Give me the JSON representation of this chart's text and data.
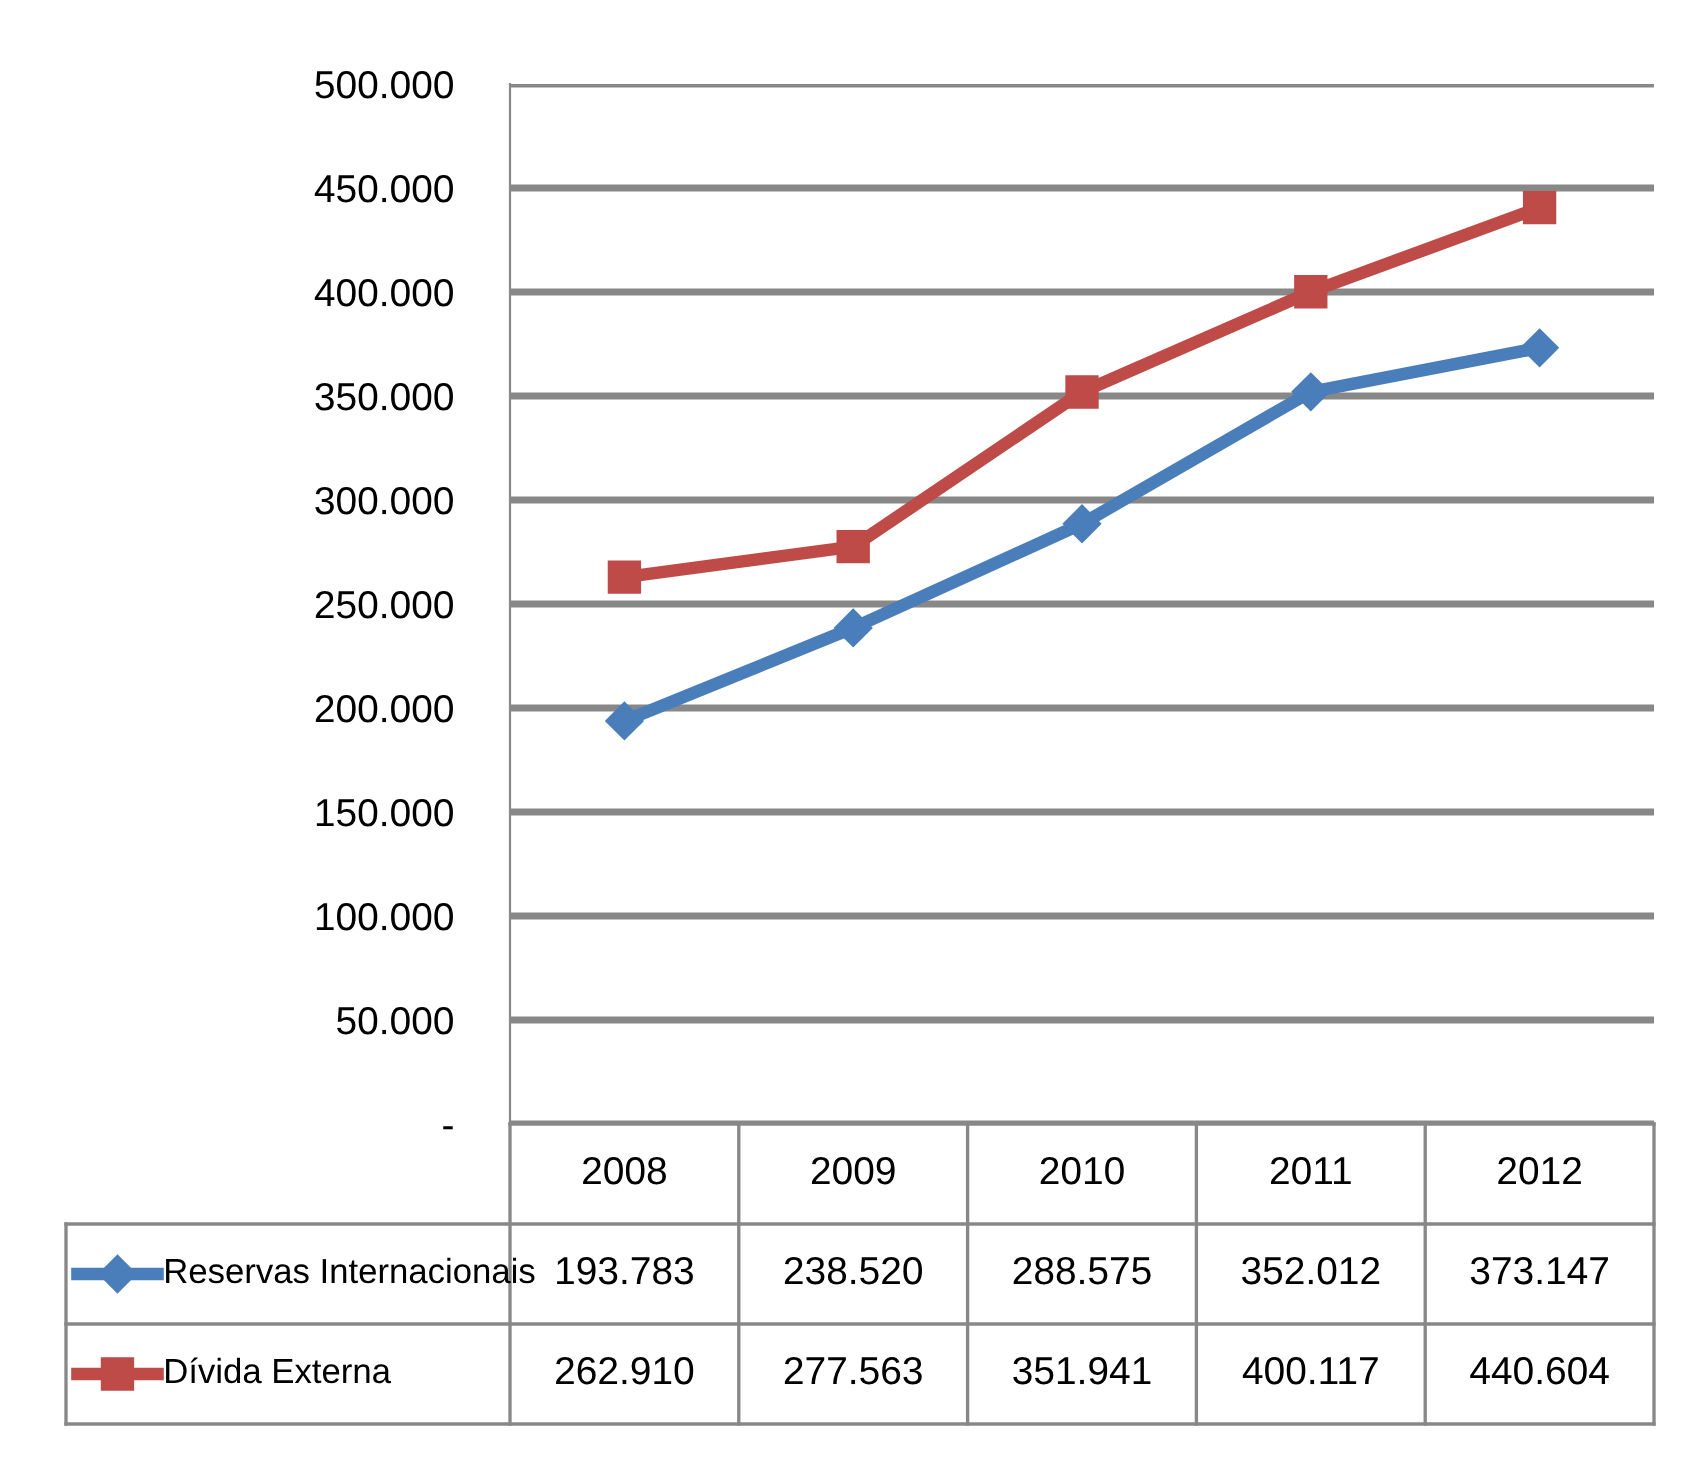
{
  "chart_data": {
    "type": "line",
    "categories": [
      "2008",
      "2009",
      "2010",
      "2011",
      "2012"
    ],
    "series": [
      {
        "name": "Reservas Internacionais",
        "color": "#4a7ebb",
        "marker": "diamond",
        "values": [
          193783,
          238520,
          288575,
          352012,
          373147
        ],
        "value_labels": [
          "193.783",
          "238.520",
          "288.575",
          "352.012",
          "373.147"
        ]
      },
      {
        "name": "Dívida Externa",
        "color": "#be4b48",
        "marker": "square",
        "values": [
          262910,
          277563,
          351941,
          400117,
          440604
        ],
        "value_labels": [
          "262.910",
          "277.563",
          "351.941",
          "400.117",
          "440.604"
        ]
      }
    ],
    "ylim": [
      0,
      500000
    ],
    "yticks": [
      {
        "value": 0,
        "label": "-"
      },
      {
        "value": 50000,
        "label": "50.000"
      },
      {
        "value": 100000,
        "label": "100.000"
      },
      {
        "value": 150000,
        "label": "150.000"
      },
      {
        "value": 200000,
        "label": "200.000"
      },
      {
        "value": 250000,
        "label": "250.000"
      },
      {
        "value": 300000,
        "label": "300.000"
      },
      {
        "value": 350000,
        "label": "350.000"
      },
      {
        "value": 400000,
        "label": "400.000"
      },
      {
        "value": 450000,
        "label": "450.000"
      },
      {
        "value": 500000,
        "label": "500.000"
      }
    ],
    "grid": "y",
    "legend": "bottom",
    "line_style": "solid"
  }
}
